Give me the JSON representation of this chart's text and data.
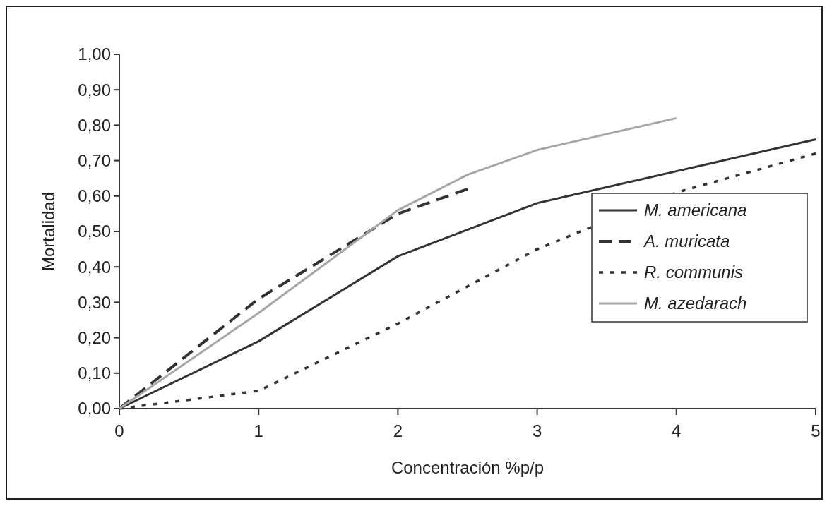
{
  "chart_data": {
    "type": "line",
    "xlabel": "Concentración %p/p",
    "ylabel": "Mortalidad",
    "xlim": [
      0,
      5
    ],
    "xticks": [
      0,
      1,
      2,
      3,
      4,
      5
    ],
    "ylim": [
      0,
      1
    ],
    "yticks": [
      {
        "value": 0,
        "label": "0,00"
      },
      {
        "value": 0.1,
        "label": "0,10"
      },
      {
        "value": 0.2,
        "label": "0,20"
      },
      {
        "value": 0.3,
        "label": "0,30"
      },
      {
        "value": 0.4,
        "label": "0,40"
      },
      {
        "value": 0.5,
        "label": "0,50"
      },
      {
        "value": 0.6,
        "label": "0,60"
      },
      {
        "value": 0.7,
        "label": "0,70"
      },
      {
        "value": 0.8,
        "label": "0,80"
      },
      {
        "value": 0.9,
        "label": "0,90"
      },
      {
        "value": 1,
        "label": "1,00"
      }
    ],
    "grid": false,
    "legend": "right",
    "series": [
      {
        "name": "M. americana",
        "color": "#333333",
        "line_style": "solid",
        "x": [
          0,
          1,
          2,
          3,
          4,
          5
        ],
        "values": [
          0,
          0.19,
          0.43,
          0.58,
          0.67,
          0.76
        ]
      },
      {
        "name": "A. muricata",
        "color": "#333333",
        "line_style": "dashed",
        "x": [
          0,
          1,
          2,
          2.5
        ],
        "values": [
          0,
          0.31,
          0.55,
          0.62
        ]
      },
      {
        "name": "R. communis",
        "color": "#333333",
        "line_style": "dotted",
        "x": [
          0,
          1,
          2,
          3,
          4,
          5
        ],
        "values": [
          0,
          0.05,
          0.24,
          0.45,
          0.61,
          0.72
        ]
      },
      {
        "name": "M. azedarach",
        "color": "#a6a6a6",
        "line_style": "solid",
        "x": [
          0,
          1,
          2,
          2.5,
          3,
          4
        ],
        "values": [
          0,
          0.27,
          0.56,
          0.66,
          0.73,
          0.82
        ]
      }
    ]
  }
}
